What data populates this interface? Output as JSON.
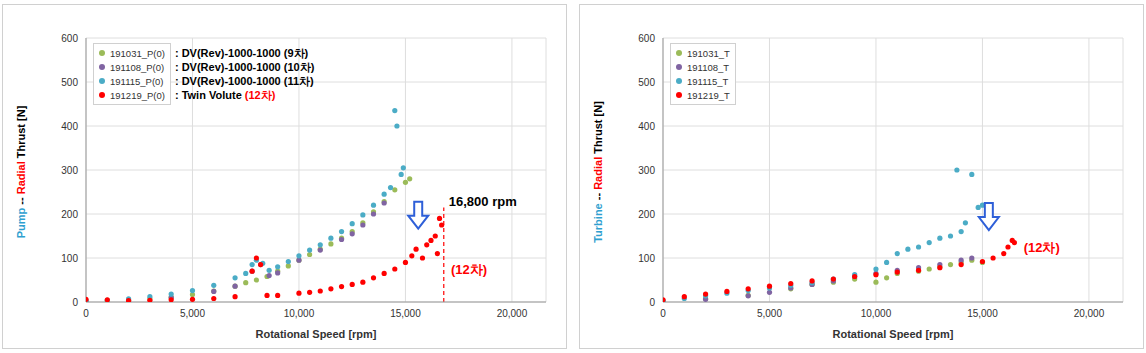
{
  "chart_data": [
    {
      "type": "scatter",
      "ylabel": [
        {
          "text": "Pump",
          "color": "#2f9fd0"
        },
        {
          "text": " -- ",
          "color": "#000000"
        },
        {
          "text": "Radial",
          "color": "#ff0000"
        },
        {
          "text": " Thrust [N]",
          "color": "#000000"
        }
      ],
      "xlabel": "Rotational Speed [rpm]",
      "xlim": [
        0,
        21600
      ],
      "xticks": [
        0,
        {
          "value": 5000,
          "label": "5,000"
        },
        {
          "value": 10000,
          "label": "10,000"
        },
        {
          "value": 15000,
          "label": "15,000"
        },
        {
          "value": 20000,
          "label": "20,000"
        }
      ],
      "ylim": [
        0,
        600
      ],
      "yticks": [
        0,
        100,
        200,
        300,
        400,
        500,
        600
      ],
      "grid": true,
      "marker": "circle",
      "series": [
        {
          "name": "191031_P(0)",
          "color": "#9bbb59",
          "label": [
            {
              "text": ": DV(Rev)-1000-1000 (9차)",
              "color": "#000000"
            }
          ],
          "x": [
            0,
            1000,
            2000,
            3000,
            4000,
            5000,
            6000,
            7000,
            7500,
            8000,
            8500,
            9000,
            9500,
            10000,
            10500,
            11000,
            11500,
            12000,
            12500,
            13000,
            13500,
            14000,
            14500,
            15000,
            15200
          ],
          "values": [
            2,
            2,
            4,
            7,
            11,
            17,
            25,
            36,
            44,
            50,
            58,
            70,
            82,
            95,
            108,
            120,
            132,
            145,
            160,
            180,
            205,
            228,
            255,
            272,
            280
          ]
        },
        {
          "name": "191108_P(0)",
          "color": "#8064a2",
          "label": [
            {
              "text": ": DV(Rev)-1000-1000 (10차)",
              "color": "#000000"
            }
          ],
          "x": [
            0,
            2000,
            4000,
            6000,
            7000,
            7800,
            8200,
            8600,
            9000,
            10000,
            11000,
            12000,
            12500,
            13000,
            13500,
            14000
          ],
          "values": [
            1,
            3,
            10,
            24,
            36,
            70,
            85,
            60,
            66,
            95,
            118,
            142,
            155,
            175,
            200,
            225
          ]
        },
        {
          "name": "191115_P(0)",
          "color": "#4bacc6",
          "label": [
            {
              "text": ": DV(Rev)-1000-1000 (11차)",
              "color": "#000000"
            }
          ],
          "x": [
            0,
            1000,
            2000,
            3000,
            4000,
            5000,
            6000,
            7000,
            7500,
            7800,
            8000,
            8300,
            8600,
            9000,
            9500,
            10000,
            10500,
            11000,
            11500,
            12000,
            12500,
            13000,
            13500,
            14000,
            14300,
            14500,
            14600,
            14800,
            14900
          ],
          "values": [
            3,
            4,
            7,
            12,
            18,
            26,
            38,
            55,
            65,
            85,
            95,
            88,
            72,
            80,
            92,
            105,
            118,
            130,
            145,
            160,
            178,
            198,
            220,
            245,
            260,
            435,
            400,
            290,
            305
          ]
        },
        {
          "name": "191219_P(0)",
          "color": "#ff0000",
          "label": [
            {
              "text": ": Twin Volute ",
              "color": "#000000"
            },
            {
              "text": "(12차)",
              "color": "#ff0000"
            }
          ],
          "x": [
            0,
            1000,
            2000,
            3000,
            4000,
            5000,
            6000,
            7000,
            7800,
            8000,
            8200,
            8500,
            9000,
            10000,
            10500,
            11000,
            11500,
            12000,
            12500,
            13000,
            13500,
            14000,
            14500,
            15000,
            15300,
            15500,
            15800,
            16000,
            16200,
            16400,
            16500,
            16600,
            16700
          ],
          "values": [
            6,
            5,
            3,
            4,
            5,
            6,
            8,
            12,
            70,
            100,
            85,
            15,
            15,
            20,
            22,
            25,
            30,
            35,
            40,
            45,
            55,
            65,
            75,
            90,
            105,
            120,
            100,
            130,
            140,
            150,
            110,
            190,
            175
          ]
        }
      ],
      "vlines": [
        {
          "x": 16800,
          "y": [
            0,
            215
          ],
          "color": "#ff0000"
        }
      ],
      "arrows": [
        {
          "x": 15600,
          "y": 228,
          "color": "#2e5fd8"
        }
      ],
      "annotations": [
        {
          "text": "16,800 rpm",
          "x": 16800,
          "y": 228,
          "color": "#000000"
        },
        {
          "text": "(12차)",
          "x": 16900,
          "y": 75,
          "color": "#ff0000"
        }
      ]
    },
    {
      "type": "scatter",
      "ylabel": [
        {
          "text": "Turbine",
          "color": "#2f9fd0"
        },
        {
          "text": " -- ",
          "color": "#000000"
        },
        {
          "text": "Radial",
          "color": "#ff0000"
        },
        {
          "text": " Thrust [N]",
          "color": "#000000"
        }
      ],
      "xlabel": "Rotational Speed [rpm]",
      "xlim": [
        0,
        21600
      ],
      "xticks": [
        0,
        {
          "value": 5000,
          "label": "5,000"
        },
        {
          "value": 10000,
          "label": "10,000"
        },
        {
          "value": 15000,
          "label": "15,000"
        },
        {
          "value": 20000,
          "label": "20,000"
        }
      ],
      "ylim": [
        0,
        600
      ],
      "yticks": [
        0,
        100,
        200,
        300,
        400,
        500,
        600
      ],
      "grid": true,
      "marker": "circle",
      "series": [
        {
          "name": "191031_T",
          "color": "#9bbb59",
          "x": [
            0,
            2000,
            4000,
            6000,
            7000,
            8000,
            9000,
            10000,
            10500,
            11000,
            12000,
            12500,
            13000,
            13500,
            14000,
            14500,
            15000
          ],
          "values": [
            2,
            8,
            15,
            30,
            40,
            45,
            52,
            45,
            55,
            65,
            70,
            75,
            80,
            85,
            90,
            95,
            90
          ]
        },
        {
          "name": "191108_T",
          "color": "#8064a2",
          "x": [
            0,
            2000,
            4000,
            5000,
            6000,
            7000,
            8000,
            9000,
            10000,
            11000,
            12000,
            13000,
            14000,
            14500
          ],
          "values": [
            1,
            6,
            14,
            22,
            32,
            40,
            48,
            58,
            65,
            72,
            78,
            85,
            95,
            100
          ]
        },
        {
          "name": "191115_T",
          "color": "#4bacc6",
          "x": [
            0,
            1000,
            2000,
            3000,
            4000,
            5000,
            6000,
            7000,
            8000,
            9000,
            10000,
            10500,
            11000,
            11500,
            12000,
            12500,
            13000,
            13500,
            13800,
            14000,
            14200,
            14500,
            14800,
            15000
          ],
          "values": [
            3,
            8,
            14,
            20,
            26,
            32,
            38,
            44,
            52,
            62,
            75,
            90,
            110,
            120,
            125,
            135,
            145,
            150,
            300,
            160,
            180,
            290,
            215,
            220
          ]
        },
        {
          "name": "191219_T",
          "color": "#ff0000",
          "x": [
            0,
            1000,
            2000,
            3000,
            4000,
            5000,
            6000,
            7000,
            8000,
            9000,
            10000,
            11000,
            12000,
            13000,
            14000,
            15000,
            15500,
            16000,
            16200,
            16400,
            16500
          ],
          "values": [
            5,
            12,
            18,
            24,
            30,
            36,
            42,
            48,
            52,
            58,
            62,
            68,
            72,
            78,
            85,
            92,
            100,
            110,
            125,
            140,
            135
          ]
        }
      ],
      "vlines": [],
      "arrows": [
        {
          "x": 15300,
          "y": 225,
          "color": "#2e5fd8"
        }
      ],
      "annotations": [
        {
          "text": "(12차)",
          "x": 16700,
          "y": 125,
          "color": "#ff0000"
        }
      ]
    }
  ]
}
